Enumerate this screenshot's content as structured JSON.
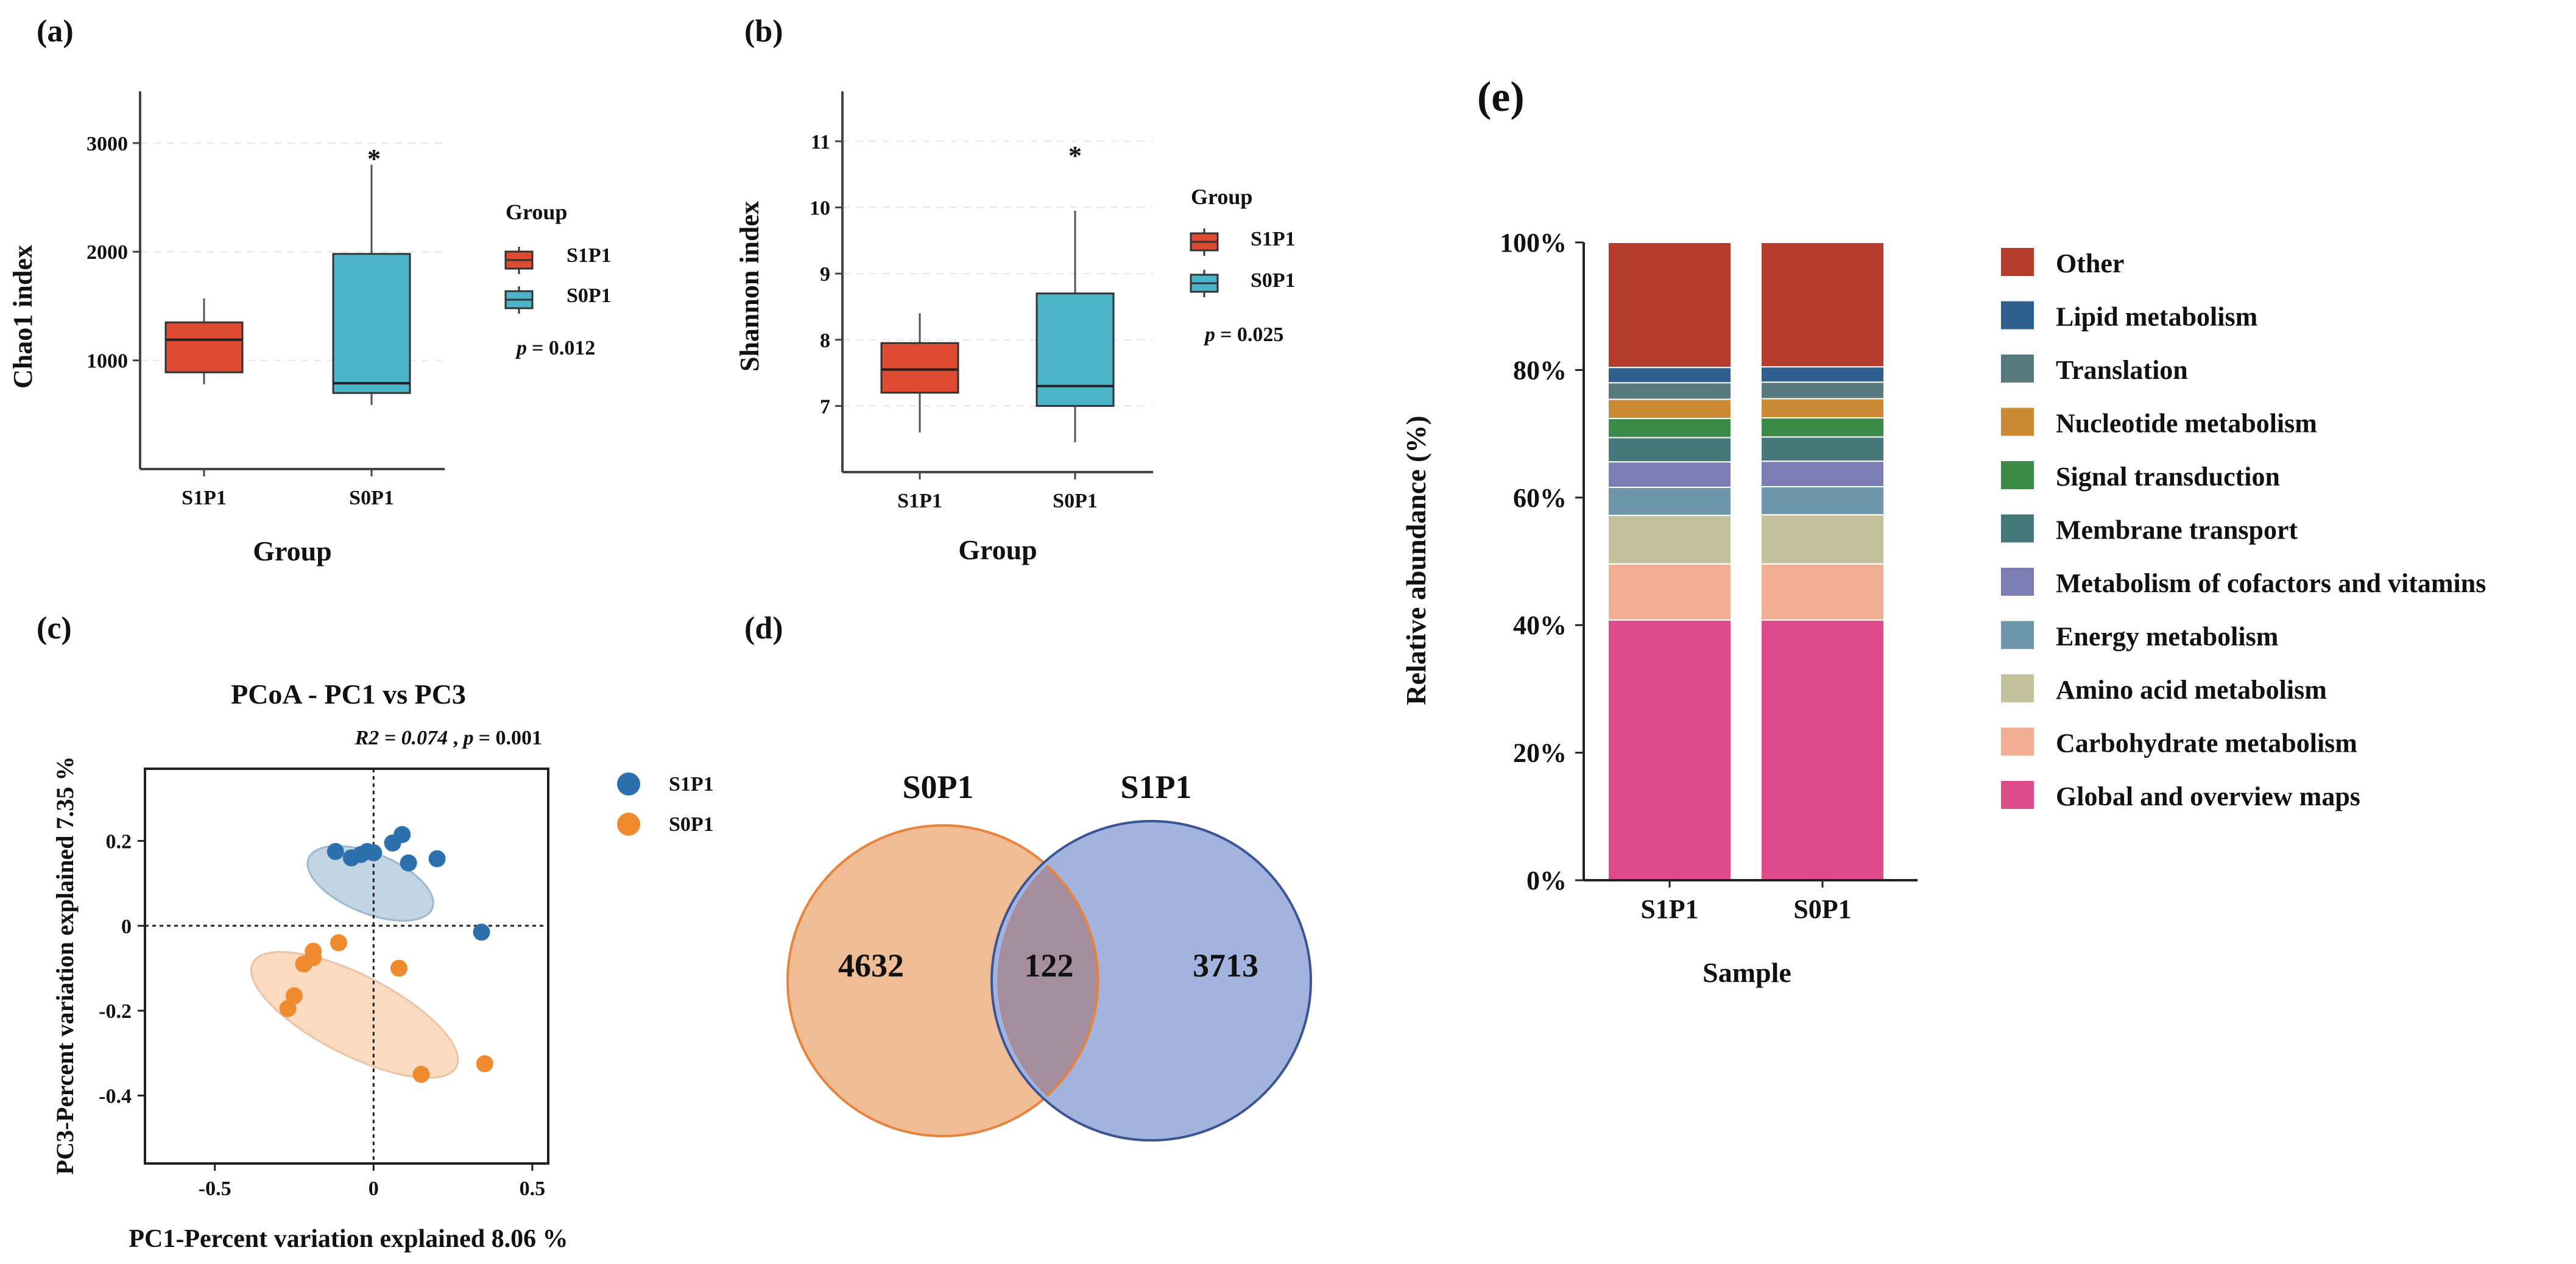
{
  "colors": {
    "s1p1_box": "#df4a33",
    "s0p1_box": "#4bb4c9",
    "s1p1_point": "#2c71ad",
    "s0p1_point": "#f08a2e",
    "venn_s0p1": "#f0bc94",
    "venn_s1p1": "#a2b4de",
    "venn_overlap": "#a48d9d"
  },
  "panels": {
    "a": {
      "label": "(a)"
    },
    "b": {
      "label": "(b)"
    },
    "c": {
      "label": "(c)"
    },
    "d": {
      "label": "(d)"
    },
    "e": {
      "label": "(e)"
    }
  },
  "chart_data": [
    {
      "id": "a",
      "type": "box",
      "xlabel": "Group",
      "ylabel": "Chao1 index",
      "categories": [
        "S1P1",
        "S0P1"
      ],
      "boxes": [
        {
          "name": "S1P1",
          "min": 780,
          "q1": 890,
          "median": 1190,
          "q3": 1350,
          "max": 1570
        },
        {
          "name": "S0P1",
          "min": 590,
          "q1": 700,
          "median": 790,
          "q3": 1980,
          "max": 2800
        }
      ],
      "ylim": [
        0,
        3700
      ],
      "yticks": [
        "1000",
        "2000",
        "3000"
      ],
      "legend_title": "Group",
      "legend": [
        "S1P1",
        "S0P1"
      ],
      "significance": "*",
      "pvalue": "= 0.012"
    },
    {
      "id": "b",
      "type": "box",
      "xlabel": "Group",
      "ylabel": "Shannon index",
      "categories": [
        "S1P1",
        "S0P1"
      ],
      "boxes": [
        {
          "name": "S1P1",
          "min": 6.6,
          "q1": 7.2,
          "median": 7.55,
          "q3": 7.95,
          "max": 8.4
        },
        {
          "name": "S0P1",
          "min": 6.45,
          "q1": 7.0,
          "median": 7.3,
          "q3": 8.7,
          "max": 9.95
        }
      ],
      "ylim": [
        6.0,
        11.8
      ],
      "yticks": [
        "7",
        "8",
        "9",
        "10",
        "11"
      ],
      "legend_title": "Group",
      "legend": [
        "S1P1",
        "S0P1"
      ],
      "significance": "*",
      "pvalue": "= 0.025"
    },
    {
      "id": "c",
      "type": "scatter",
      "title": "PCoA - PC1 vs PC3",
      "annotation_r2": "R2 = 0.074",
      "annotation_p": "= 0.001",
      "xlabel": "PC1-Percent variation explained 8.06 %",
      "ylabel": "PC3-Percent variation explained 7.35 %",
      "xlim": [
        -0.72,
        0.55
      ],
      "ylim": [
        -0.56,
        0.37
      ],
      "xticks": [
        "-0.5",
        "0",
        "0.5"
      ],
      "yticks": [
        "0.2",
        "0",
        "-0.2",
        "-0.4"
      ],
      "series": [
        {
          "name": "S1P1",
          "points": [
            [
              -0.12,
              0.175
            ],
            [
              -0.07,
              0.16
            ],
            [
              -0.04,
              0.168
            ],
            [
              -0.02,
              0.175
            ],
            [
              0.0,
              0.172
            ],
            [
              0.06,
              0.195
            ],
            [
              0.09,
              0.215
            ],
            [
              0.11,
              0.148
            ],
            [
              0.2,
              0.158
            ],
            [
              0.34,
              -0.015
            ]
          ]
        },
        {
          "name": "S0P1",
          "points": [
            [
              -0.27,
              -0.195
            ],
            [
              -0.25,
              -0.165
            ],
            [
              -0.22,
              -0.09
            ],
            [
              -0.19,
              -0.06
            ],
            [
              -0.19,
              -0.075
            ],
            [
              -0.11,
              -0.04
            ],
            [
              0.08,
              -0.1
            ],
            [
              0.15,
              -0.35
            ],
            [
              0.35,
              -0.325
            ]
          ]
        }
      ],
      "legend": [
        "S1P1",
        "S0P1"
      ]
    },
    {
      "id": "d",
      "type": "venn",
      "sets": [
        {
          "name": "S0P1",
          "unique": 4632
        },
        {
          "name": "S1P1",
          "unique": 3713
        }
      ],
      "overlap": 122
    },
    {
      "id": "e",
      "type": "bar",
      "stacked": true,
      "xlabel": "Sample",
      "ylabel": "Relative abundance (%)",
      "categories": [
        "S1P1",
        "S0P1"
      ],
      "ylim": [
        0,
        100
      ],
      "yticks": [
        "0%",
        "20%",
        "40%",
        "60%",
        "80%",
        "100%"
      ],
      "series": [
        {
          "name": "Global and overview maps",
          "color": "#df4a8a",
          "values": [
            40.8,
            40.8
          ]
        },
        {
          "name": "Carbohydrate metabolism",
          "color": "#f2ae92",
          "values": [
            8.8,
            8.8
          ]
        },
        {
          "name": "Amino acid metabolism",
          "color": "#c3c29c",
          "values": [
            7.6,
            7.7
          ]
        },
        {
          "name": "Energy metabolism",
          "color": "#6e97ac",
          "values": [
            4.4,
            4.4
          ]
        },
        {
          "name": "Metabolism of cofactors and vitamins",
          "color": "#7b7db4",
          "values": [
            4.0,
            4.0
          ]
        },
        {
          "name": "Membrane transport",
          "color": "#44787a",
          "values": [
            3.8,
            3.8
          ]
        },
        {
          "name": "Signal transduction",
          "color": "#3c8a47",
          "values": [
            3.0,
            3.0
          ]
        },
        {
          "name": "Nucleotide metabolism",
          "color": "#cc8a35",
          "values": [
            3.0,
            3.0
          ]
        },
        {
          "name": "Translation",
          "color": "#587a7e",
          "values": [
            2.6,
            2.6
          ]
        },
        {
          "name": "Lipid metabolism",
          "color": "#2f5f8f",
          "values": [
            2.4,
            2.4
          ]
        },
        {
          "name": "Other",
          "color": "#b53b2b",
          "values": [
            19.6,
            19.5
          ]
        }
      ],
      "legend_order": [
        "Other",
        "Lipid metabolism",
        "Translation",
        "Nucleotide metabolism",
        "Signal transduction",
        "Membrane transport",
        "Metabolism of cofactors and vitamins",
        "Energy metabolism",
        "Amino acid metabolism",
        "Carbohydrate metabolism",
        "Global and overview maps"
      ]
    }
  ]
}
